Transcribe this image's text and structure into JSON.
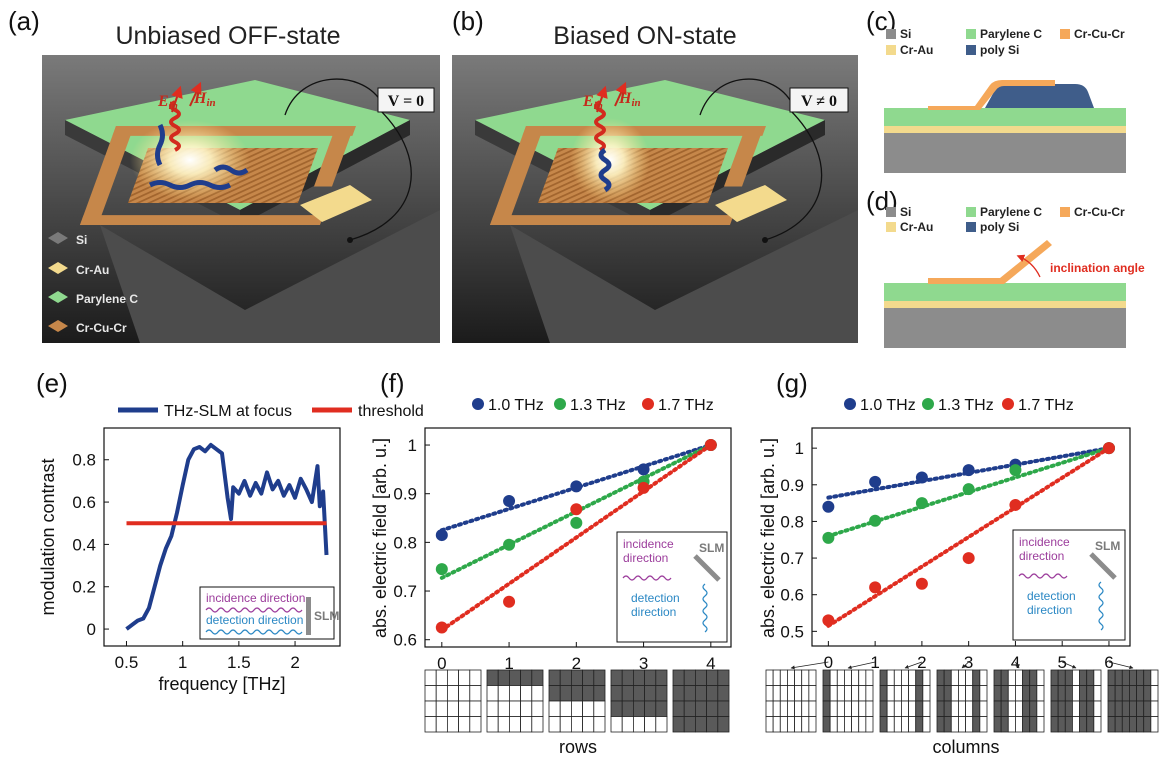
{
  "panels": {
    "a": {
      "label": "(a)",
      "title": "Unbiased OFF-state",
      "voltage": "V = 0",
      "fields": [
        "E",
        "in",
        "H",
        "in"
      ],
      "legend": [
        "Si",
        "Cr-Au",
        "Parylene C",
        "Cr-Cu-Cr"
      ]
    },
    "b": {
      "label": "(b)",
      "title": "Biased ON-state",
      "voltage": "V ≠ 0",
      "fields": [
        "E",
        "in",
        "H",
        "in"
      ]
    },
    "c": {
      "label": "(c)",
      "legend": [
        "Si",
        "Parylene C",
        "Cr-Cu-Cr",
        "Cr-Au",
        "poly Si"
      ]
    },
    "d": {
      "label": "(d)",
      "legend": [
        "Si",
        "Parylene C",
        "Cr-Cu-Cr",
        "Cr-Au",
        "poly Si"
      ],
      "annotation": "inclination angle"
    },
    "e": {
      "label": "(e)"
    },
    "f": {
      "label": "(f)"
    },
    "g": {
      "label": "(g)"
    }
  },
  "colors": {
    "si": "#8c8c8c",
    "parylene": "#8fd98f",
    "crcucr": "#f5a85a",
    "crau": "#f3da8d",
    "polysi": "#3f5d8a",
    "blue": "#1f3d8c",
    "green": "#2ea84a",
    "red": "#e02d20",
    "incidence": "#9c3d9c",
    "detection": "#2b88c4"
  },
  "chart_data": [
    {
      "id": "e",
      "type": "line",
      "xlabel": "frequency [THz]",
      "ylabel": "modulation contrast",
      "xlim": [
        0.3,
        2.4
      ],
      "ylim": [
        -0.08,
        0.95
      ],
      "xticks": [
        0.5,
        1,
        1.5,
        2
      ],
      "xtick_labels": [
        "0.5",
        "1",
        "1.5",
        "2"
      ],
      "yticks": [
        0,
        0.2,
        0.4,
        0.6,
        0.8
      ],
      "ytick_labels": [
        "0",
        "0.2",
        "0.4",
        "0.6",
        "0.8"
      ],
      "legend": "top",
      "series": [
        {
          "name": "THz-SLM at focus",
          "color": "#1f3d8c",
          "x": [
            0.5,
            0.55,
            0.6,
            0.65,
            0.7,
            0.75,
            0.8,
            0.85,
            0.9,
            0.95,
            1.0,
            1.05,
            1.1,
            1.15,
            1.2,
            1.25,
            1.3,
            1.35,
            1.4,
            1.43,
            1.45,
            1.5,
            1.55,
            1.6,
            1.65,
            1.7,
            1.75,
            1.8,
            1.85,
            1.9,
            1.95,
            2.0,
            2.05,
            2.1,
            2.15,
            2.2,
            2.22,
            2.25,
            2.28
          ],
          "y": [
            0.0,
            0.02,
            0.04,
            0.05,
            0.1,
            0.2,
            0.3,
            0.38,
            0.44,
            0.55,
            0.68,
            0.8,
            0.85,
            0.86,
            0.84,
            0.87,
            0.85,
            0.83,
            0.62,
            0.52,
            0.67,
            0.64,
            0.7,
            0.63,
            0.69,
            0.64,
            0.74,
            0.66,
            0.7,
            0.63,
            0.68,
            0.62,
            0.71,
            0.66,
            0.6,
            0.77,
            0.58,
            0.65,
            0.35
          ]
        },
        {
          "name": "threshold",
          "color": "#e02d20",
          "x": [
            0.5,
            2.28
          ],
          "y": [
            0.5,
            0.5
          ]
        }
      ],
      "inset": {
        "incidence": "incidence direction",
        "detection": "detection direction",
        "slm": "SLM"
      }
    },
    {
      "id": "f",
      "type": "scatter",
      "xlabel": "rows",
      "ylabel": "abs. electric field [arb. u.]",
      "xlim": [
        -0.25,
        4.3
      ],
      "ylim": [
        0.585,
        1.035
      ],
      "xticks": [
        0,
        1,
        2,
        3,
        4
      ],
      "xtick_labels": [
        "0",
        "1",
        "2",
        "3",
        "4"
      ],
      "yticks": [
        0.6,
        0.7,
        0.8,
        0.9,
        1.0
      ],
      "ytick_labels": [
        "0.6",
        "0.7",
        "0.8",
        "0.9",
        "1"
      ],
      "legend": "top",
      "series": [
        {
          "name": "1.0 THz",
          "color": "#1f3d8c",
          "x": [
            0,
            1,
            2,
            3,
            4
          ],
          "y": [
            0.815,
            0.885,
            0.915,
            0.95,
            1.0
          ],
          "fit": [
            [
              0,
              0.825
            ],
            [
              4,
              1.0
            ]
          ]
        },
        {
          "name": "1.3 THz",
          "color": "#2ea84a",
          "x": [
            0,
            1,
            2,
            3,
            4
          ],
          "y": [
            0.745,
            0.795,
            0.84,
            0.925,
            1.0
          ],
          "fit": [
            [
              0,
              0.727
            ],
            [
              4,
              1.0
            ]
          ]
        },
        {
          "name": "1.7 THz",
          "color": "#e02d20",
          "x": [
            0,
            1,
            2,
            3,
            4
          ],
          "y": [
            0.625,
            0.678,
            0.868,
            0.912,
            1.0
          ],
          "fit": [
            [
              0,
              0.62
            ],
            [
              4,
              1.0
            ]
          ]
        }
      ],
      "inset": {
        "incidence": "incidence direction",
        "detection": "detection direction",
        "slm": "SLM"
      },
      "patterns": [
        0,
        1,
        2,
        3,
        4
      ]
    },
    {
      "id": "g",
      "type": "scatter",
      "xlabel": "columns",
      "ylabel": "abs. electric field [arb. u.]",
      "xlim": [
        -0.35,
        6.45
      ],
      "ylim": [
        0.46,
        1.055
      ],
      "xticks": [
        0,
        1,
        2,
        3,
        4,
        5,
        6
      ],
      "xtick_labels": [
        "0",
        "1",
        "2",
        "3",
        "4",
        "5",
        "6"
      ],
      "yticks": [
        0.5,
        0.6,
        0.7,
        0.8,
        0.9,
        1.0
      ],
      "ytick_labels": [
        "0.5",
        "0.6",
        "0.7",
        "0.8",
        "0.9",
        "1"
      ],
      "legend": "top",
      "series": [
        {
          "name": "1.0 THz",
          "color": "#1f3d8c",
          "x": [
            0,
            1,
            2,
            3,
            4,
            6
          ],
          "y": [
            0.84,
            0.908,
            0.92,
            0.94,
            0.955,
            1.0
          ],
          "fit": [
            [
              0,
              0.865
            ],
            [
              6,
              1.0
            ]
          ]
        },
        {
          "name": "1.3 THz",
          "color": "#2ea84a",
          "x": [
            0,
            1,
            2,
            3,
            4,
            6
          ],
          "y": [
            0.755,
            0.802,
            0.85,
            0.888,
            0.94,
            1.0
          ],
          "fit": [
            [
              0,
              0.76
            ],
            [
              6,
              1.0
            ]
          ]
        },
        {
          "name": "1.7 THz",
          "color": "#e02d20",
          "x": [
            0,
            1,
            2,
            3,
            4,
            6
          ],
          "y": [
            0.53,
            0.62,
            0.63,
            0.7,
            0.845,
            1.0
          ],
          "fit": [
            [
              0,
              0.515
            ],
            [
              6,
              1.0
            ]
          ]
        }
      ],
      "inset": {
        "incidence": "incidence direction",
        "detection": "detection direction",
        "slm": "SLM"
      },
      "patterns": [
        0,
        1,
        2,
        3,
        4,
        5,
        6
      ]
    }
  ]
}
